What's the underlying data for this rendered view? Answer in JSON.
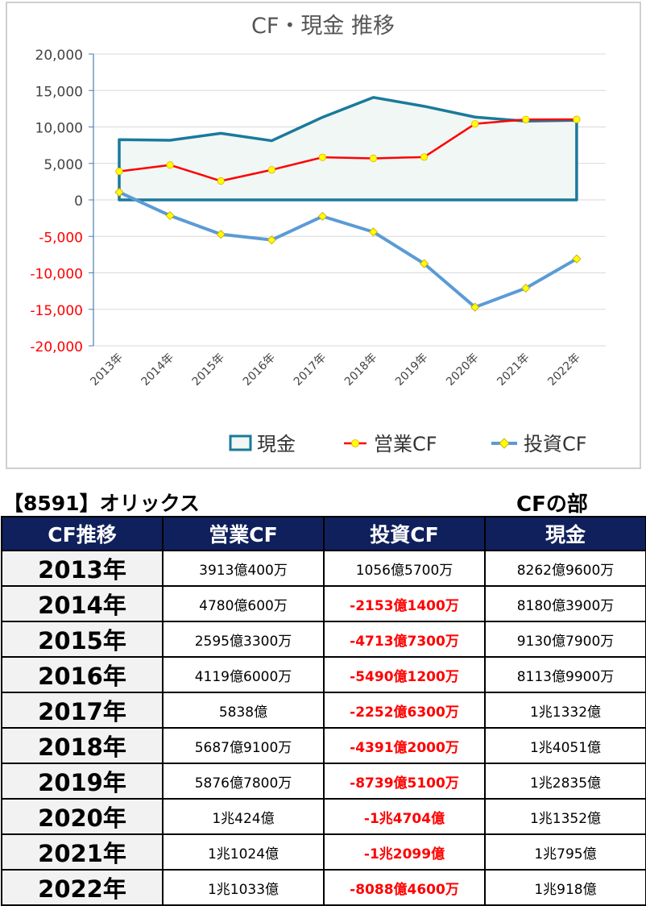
{
  "chart_data": {
    "type": "line",
    "title": "CF・現金 推移",
    "categories": [
      "2013年",
      "2014年",
      "2015年",
      "2016年",
      "2017年",
      "2018年",
      "2019年",
      "2020年",
      "2021年",
      "2022年"
    ],
    "series": [
      {
        "name": "現金",
        "style": "area",
        "color": "#1a7a9b",
        "fill": "#f1f7f4",
        "values": [
          8262.96,
          8180.39,
          9130.79,
          8113.99,
          11332,
          14051,
          12835,
          11352,
          10795,
          10918
        ]
      },
      {
        "name": "営業CF",
        "style": "line",
        "color": "#ff0000",
        "marker_color": "#ffff00",
        "values": [
          3913.04,
          4780.06,
          2595.33,
          4119.6,
          5838,
          5687.91,
          5876.78,
          10424,
          11024,
          11033
        ]
      },
      {
        "name": "投資CF",
        "style": "line",
        "color": "#5b9bd5",
        "marker_color": "#ffff00",
        "values": [
          1056.57,
          -2153.14,
          -4713.73,
          -5490.12,
          -2252.63,
          -4391.2,
          -8739.51,
          -14704,
          -12099,
          -8088.46
        ]
      }
    ],
    "ylim": [
      -20000,
      20000
    ],
    "yticks": [
      20000,
      15000,
      10000,
      5000,
      0,
      -5000,
      -10000,
      -15000,
      -20000
    ],
    "ytick_labels": [
      "20,000",
      "15,000",
      "10,000",
      "5,000",
      "0",
      "-5,000",
      "-10,000",
      "-15,000",
      "-20,000"
    ],
    "negative_tick_color": "#ff0000",
    "grid": true,
    "legend_position": "bottom",
    "xlabel": "",
    "ylabel": ""
  },
  "table": {
    "company": "【8591】オリックス",
    "section": "CFの部",
    "headers": [
      "CF推移",
      "営業CF",
      "投資CF",
      "現金"
    ],
    "rows": [
      {
        "year": "2013年",
        "operating": "3913億400万",
        "investing": "1056億5700万",
        "cash": "8262億9600万",
        "investing_negative": false
      },
      {
        "year": "2014年",
        "operating": "4780億600万",
        "investing": "-2153億1400万",
        "cash": "8180億3900万",
        "investing_negative": true
      },
      {
        "year": "2015年",
        "operating": "2595億3300万",
        "investing": "-4713億7300万",
        "cash": "9130億7900万",
        "investing_negative": true
      },
      {
        "year": "2016年",
        "operating": "4119億6000万",
        "investing": "-5490億1200万",
        "cash": "8113億9900万",
        "investing_negative": true
      },
      {
        "year": "2017年",
        "operating": "5838億",
        "investing": "-2252億6300万",
        "cash": "1兆1332億",
        "investing_negative": true
      },
      {
        "year": "2018年",
        "operating": "5687億9100万",
        "investing": "-4391億2000万",
        "cash": "1兆4051億",
        "investing_negative": true
      },
      {
        "year": "2019年",
        "operating": "5876億7800万",
        "investing": "-8739億5100万",
        "cash": "1兆2835億",
        "investing_negative": true
      },
      {
        "year": "2020年",
        "operating": "1兆424億",
        "investing": "-1兆4704億",
        "cash": "1兆1352億",
        "investing_negative": true
      },
      {
        "year": "2021年",
        "operating": "1兆1024億",
        "investing": "-1兆2099億",
        "cash": "1兆795億",
        "investing_negative": true
      },
      {
        "year": "2022年",
        "operating": "1兆1033億",
        "investing": "-8088億4600万",
        "cash": "1兆918億",
        "investing_negative": true
      }
    ]
  }
}
